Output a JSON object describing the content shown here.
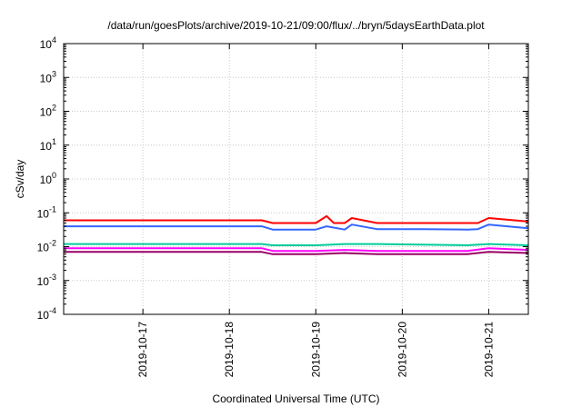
{
  "chart_data": {
    "type": "line",
    "title": "/data/run/goesPlots/archive/2019-10-21/09:00/flux/../bryn/5daysEarthData.plot",
    "xlabel": "Coordinated Universal Time (UTC)",
    "ylabel": "cSv/day",
    "yscale": "log",
    "ylim": [
      0.0001,
      10000
    ],
    "xlim": [
      "2019-10-16T02:00",
      "2019-10-21T11:00"
    ],
    "grid": true,
    "x_ticks": [
      "2019-10-17",
      "2019-10-18",
      "2019-10-19",
      "2019-10-20",
      "2019-10-21"
    ],
    "y_ticks": [
      {
        "base": "10",
        "exp": "4"
      },
      {
        "base": "10",
        "exp": "3"
      },
      {
        "base": "10",
        "exp": "2"
      },
      {
        "base": "10",
        "exp": "1"
      },
      {
        "base": "10",
        "exp": "0"
      },
      {
        "base": "10",
        "exp": "-1"
      },
      {
        "base": "10",
        "exp": "-2"
      },
      {
        "base": "10",
        "exp": "-3"
      },
      {
        "base": "10",
        "exp": "-4"
      }
    ],
    "series": [
      {
        "color": "#ff0000",
        "points": [
          [
            "2019-10-16T02:00",
            0.06
          ],
          [
            "2019-10-18T09:00",
            0.06
          ],
          [
            "2019-10-18T12:00",
            0.05
          ],
          [
            "2019-10-19T00:00",
            0.05
          ],
          [
            "2019-10-19T03:00",
            0.08
          ],
          [
            "2019-10-19T05:00",
            0.05
          ],
          [
            "2019-10-19T08:00",
            0.05
          ],
          [
            "2019-10-19T10:00",
            0.07
          ],
          [
            "2019-10-19T17:00",
            0.05
          ],
          [
            "2019-10-20T06:00",
            0.05
          ],
          [
            "2019-10-20T18:00",
            0.05
          ],
          [
            "2019-10-20T21:00",
            0.05
          ],
          [
            "2019-10-21T00:00",
            0.07
          ],
          [
            "2019-10-21T11:00",
            0.055
          ]
        ]
      },
      {
        "color": "#3366ff",
        "points": [
          [
            "2019-10-16T02:00",
            0.04
          ],
          [
            "2019-10-18T09:00",
            0.04
          ],
          [
            "2019-10-18T12:00",
            0.032
          ],
          [
            "2019-10-19T00:00",
            0.032
          ],
          [
            "2019-10-19T03:00",
            0.04
          ],
          [
            "2019-10-19T08:00",
            0.032
          ],
          [
            "2019-10-19T10:00",
            0.045
          ],
          [
            "2019-10-19T17:00",
            0.033
          ],
          [
            "2019-10-20T06:00",
            0.033
          ],
          [
            "2019-10-20T18:00",
            0.032
          ],
          [
            "2019-10-20T21:00",
            0.033
          ],
          [
            "2019-10-21T00:00",
            0.045
          ],
          [
            "2019-10-21T11:00",
            0.035
          ]
        ]
      },
      {
        "color": "#00cc99",
        "points": [
          [
            "2019-10-16T02:00",
            0.012
          ],
          [
            "2019-10-18T09:00",
            0.012
          ],
          [
            "2019-10-18T12:00",
            0.011
          ],
          [
            "2019-10-19T00:00",
            0.011
          ],
          [
            "2019-10-19T08:00",
            0.012
          ],
          [
            "2019-10-19T17:00",
            0.012
          ],
          [
            "2019-10-20T18:00",
            0.011
          ],
          [
            "2019-10-21T00:00",
            0.012
          ],
          [
            "2019-10-21T11:00",
            0.011
          ]
        ]
      },
      {
        "color": "#990066",
        "points": [
          [
            "2019-10-16T02:00",
            0.007
          ],
          [
            "2019-10-18T09:00",
            0.007
          ],
          [
            "2019-10-18T12:00",
            0.006
          ],
          [
            "2019-10-19T00:00",
            0.006
          ],
          [
            "2019-10-19T08:00",
            0.0065
          ],
          [
            "2019-10-19T17:00",
            0.006
          ],
          [
            "2019-10-20T18:00",
            0.006
          ],
          [
            "2019-10-21T00:00",
            0.007
          ],
          [
            "2019-10-21T11:00",
            0.0065
          ]
        ]
      },
      {
        "color": "#ff00ff",
        "points": [
          [
            "2019-10-16T02:00",
            0.009
          ],
          [
            "2019-10-18T09:00",
            0.009
          ],
          [
            "2019-10-18T12:00",
            0.0075
          ],
          [
            "2019-10-19T00:00",
            0.0075
          ],
          [
            "2019-10-19T08:00",
            0.008
          ],
          [
            "2019-10-19T17:00",
            0.0075
          ],
          [
            "2019-10-20T18:00",
            0.0075
          ],
          [
            "2019-10-21T00:00",
            0.009
          ],
          [
            "2019-10-21T11:00",
            0.008
          ]
        ]
      }
    ]
  }
}
